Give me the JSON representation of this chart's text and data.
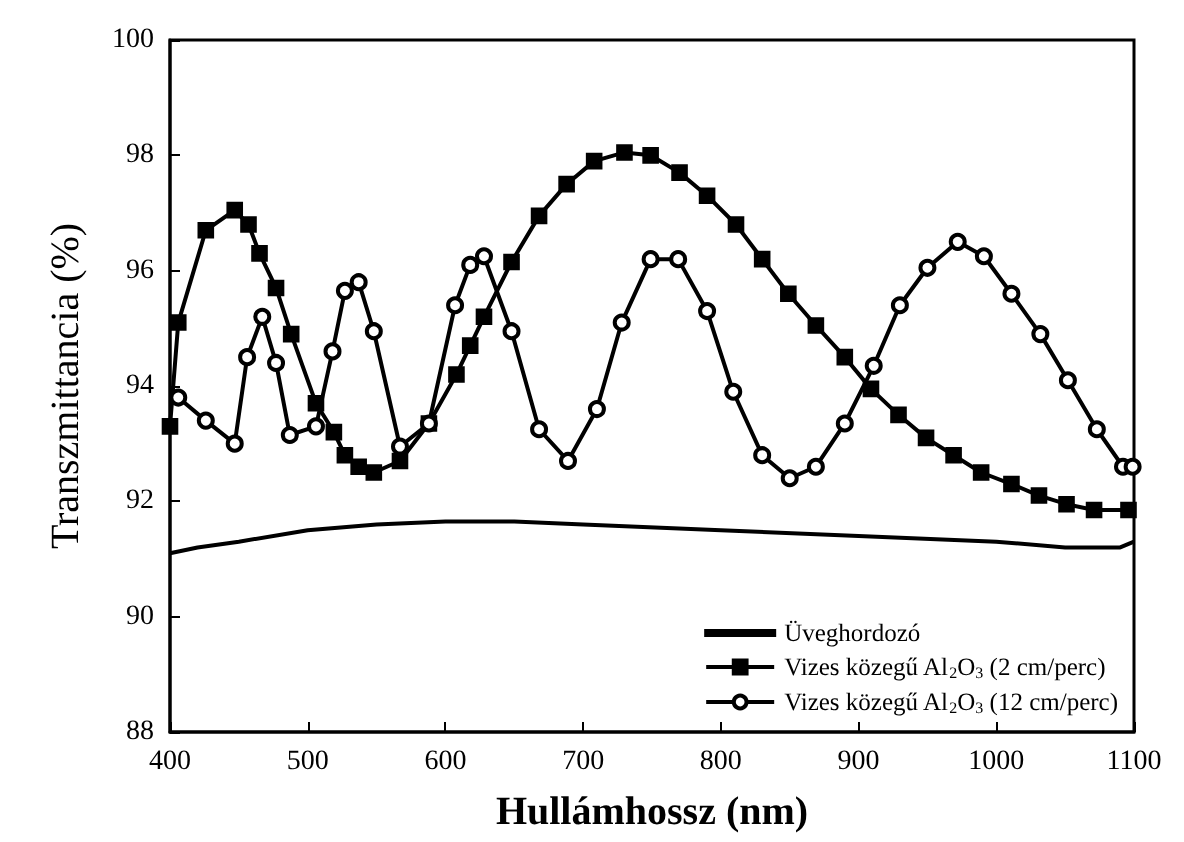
{
  "chart_data": {
    "type": "line",
    "xlabel": "Hullámhossz (nm)",
    "ylabel": "Transzmittancia (%)",
    "xlim": [
      400,
      1100
    ],
    "ylim": [
      88,
      100
    ],
    "xticks": [
      400,
      500,
      600,
      700,
      800,
      900,
      1000,
      1100
    ],
    "yticks": [
      88,
      90,
      92,
      94,
      96,
      98,
      100
    ],
    "grid": false,
    "legend": "bottom right",
    "series": [
      {
        "name": "Üveghordozó",
        "color": "#000000",
        "marker": "none",
        "x": [
          400,
          420,
          450,
          500,
          550,
          600,
          650,
          700,
          800,
          900,
          1000,
          1050,
          1090,
          1100
        ],
        "values": [
          91.1,
          91.2,
          91.3,
          91.5,
          91.6,
          91.65,
          91.65,
          91.6,
          91.5,
          91.4,
          91.3,
          91.2,
          91.2,
          91.3
        ]
      },
      {
        "name": "Vizes közegű Al$_{2}$O$_{3}$ (2 cm/perc)",
        "color": "#000000",
        "marker": "square",
        "x": [
          400,
          406,
          426,
          447,
          457,
          465,
          477,
          488,
          506,
          519,
          527,
          537,
          548,
          567,
          588,
          608,
          618,
          628,
          648,
          668,
          688,
          708,
          730,
          749,
          770,
          790,
          811,
          830,
          849,
          869,
          890,
          909,
          929,
          949,
          969,
          989,
          1011,
          1031,
          1051,
          1071,
          1096
        ],
        "values": [
          93.3,
          95.1,
          96.7,
          97.05,
          96.8,
          96.3,
          95.7,
          94.9,
          93.7,
          93.2,
          92.8,
          92.6,
          92.5,
          92.7,
          93.35,
          94.2,
          94.7,
          95.2,
          96.15,
          96.95,
          97.5,
          97.9,
          98.05,
          98,
          97.7,
          97.3,
          96.8,
          96.2,
          95.6,
          95.05,
          94.5,
          93.95,
          93.5,
          93.1,
          92.8,
          92.5,
          92.3,
          92.1,
          91.95,
          91.85,
          91.85
        ]
      },
      {
        "name": "Vizes közegű Al$_{2}$O$_{3}$ (12 cm/perc)",
        "color": "#000000",
        "marker": "circle",
        "x": [
          406,
          426,
          447,
          456,
          467,
          477,
          487,
          506,
          518,
          527,
          537,
          548,
          567,
          588,
          607,
          618,
          628,
          648,
          668,
          689,
          710,
          728,
          749,
          769,
          790,
          809,
          830,
          850,
          869,
          890,
          911,
          930,
          950,
          972,
          991,
          1011,
          1032,
          1052,
          1073,
          1092,
          1099
        ],
        "values": [
          93.8,
          93.4,
          93,
          94.5,
          95.2,
          94.4,
          93.15,
          93.3,
          94.6,
          95.65,
          95.8,
          94.95,
          92.95,
          93.35,
          95.4,
          96.1,
          96.25,
          94.95,
          93.25,
          92.7,
          93.6,
          95.1,
          96.2,
          96.2,
          95.3,
          93.9,
          92.8,
          92.4,
          92.6,
          93.35,
          94.35,
          95.4,
          96.05,
          96.5,
          96.25,
          95.6,
          94.9,
          94.1,
          93.25,
          92.6,
          92.6
        ]
      }
    ]
  }
}
